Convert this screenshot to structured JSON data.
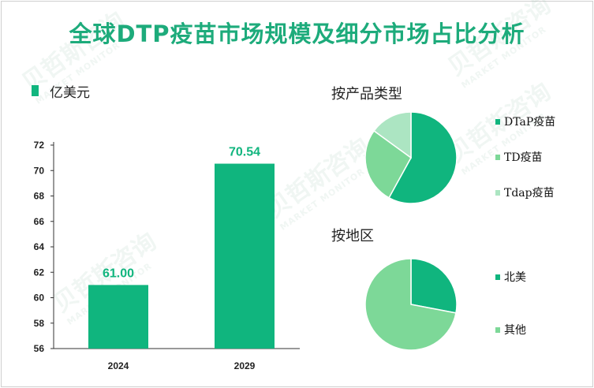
{
  "title": "全球DTP疫苗市场规模及细分市场占比分析",
  "unit": "亿美元",
  "colors": {
    "primary": "#10b57e",
    "title": "#1dab7b",
    "light_green": "#7dd898",
    "pale_green": "#ace5c2"
  },
  "watermark": {
    "main": "贝哲斯咨询",
    "sub": "MARKET MONITOR"
  },
  "chart_data": [
    {
      "type": "bar",
      "categories": [
        "2024",
        "2029"
      ],
      "values": [
        61.0,
        70.54
      ],
      "data_labels": [
        "61.00",
        "70.54"
      ],
      "y_ticks": [
        "56",
        "58",
        "60",
        "62",
        "64",
        "66",
        "68",
        "70",
        "72"
      ],
      "ylim": [
        56,
        72
      ],
      "grid": false,
      "color": "#10b57e"
    },
    {
      "type": "pie",
      "title": "按产品类型",
      "labels": [
        "DTaP疫苗",
        "TD疫苗",
        "Tdap疫苗"
      ],
      "values": [
        58,
        27,
        15
      ],
      "colors": [
        "#10b57e",
        "#7dd898",
        "#ace5c2"
      ],
      "legend_position": "right"
    },
    {
      "type": "pie",
      "title": "按地区",
      "labels": [
        "北美",
        "其他"
      ],
      "values": [
        28,
        72
      ],
      "colors": [
        "#10b57e",
        "#7dd898"
      ],
      "legend_position": "right"
    }
  ]
}
